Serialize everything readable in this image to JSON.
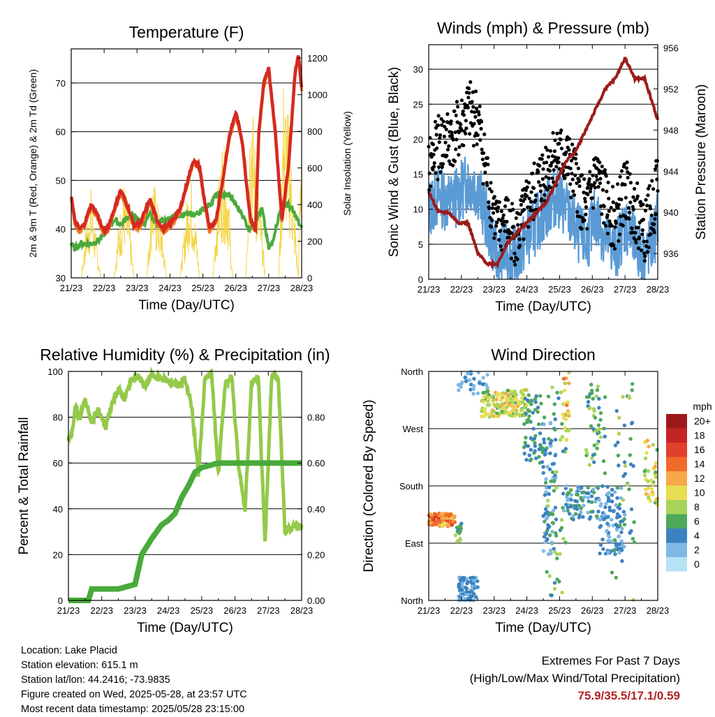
{
  "chart_data": [
    {
      "type": "line",
      "title": "Temperature (F)",
      "xlabel": "Time (Day/UTC)",
      "ylabel": "2m & 9m T (Red, Orange) & 2m Td (Green)",
      "y2label": "Solar Insolation (Yellow)",
      "x_ticks": [
        "21/23",
        "22/23",
        "23/23",
        "24/23",
        "25/23",
        "26/23",
        "27/23",
        "28/23"
      ],
      "ylim": [
        30,
        77
      ],
      "y_ticks": [
        30,
        40,
        50,
        60,
        70
      ],
      "y2lim": [
        0,
        1250
      ],
      "y2_ticks": [
        0,
        200,
        400,
        600,
        800,
        1000,
        1200
      ],
      "grid": "horizontal",
      "colors": {
        "t2m": "#d42a20",
        "t9m": "#f07a24",
        "td": "#4aaa3c",
        "solar": "#f5d445"
      },
      "series": [
        {
          "key": "t2m",
          "x": [
            0,
            0.1,
            0.25,
            0.4,
            0.6,
            0.8,
            0.95,
            1.1,
            1.3,
            1.5,
            1.7,
            1.9,
            2.1,
            2.2,
            2.4,
            2.6,
            2.8,
            3.0,
            3.1,
            3.3,
            3.5,
            3.7,
            3.9,
            4.0,
            4.2,
            4.4,
            4.6,
            4.8,
            5.0,
            5.2,
            5.3,
            5.45,
            5.6,
            5.7,
            5.85,
            6.0,
            6.2,
            6.4,
            6.6,
            6.8,
            6.9,
            7.0
          ],
          "values": [
            47,
            42,
            40,
            41,
            45,
            43,
            40,
            40,
            44,
            48,
            45,
            41,
            41,
            43,
            46,
            42,
            40,
            41,
            42,
            44,
            49,
            54,
            53,
            48,
            40,
            42,
            50,
            59,
            64,
            58,
            51,
            42,
            40,
            60,
            70,
            73,
            60,
            42,
            53,
            72,
            76,
            69
          ]
        },
        {
          "key": "td",
          "x": [
            0,
            0.1,
            0.3,
            0.6,
            0.9,
            1.1,
            1.3,
            1.5,
            1.8,
            2.0,
            2.2,
            2.4,
            2.6,
            2.8,
            3.0,
            3.2,
            3.4,
            3.6,
            3.8,
            4.0,
            4.2,
            4.4,
            4.6,
            4.8,
            5.0,
            5.2,
            5.4,
            5.6,
            5.8,
            6.0,
            6.1,
            6.2,
            6.4,
            6.6,
            6.8,
            7.0
          ],
          "values": [
            37,
            36,
            37,
            37,
            38,
            40,
            42,
            41,
            43,
            42,
            41,
            43,
            41,
            42,
            42,
            43,
            43,
            43,
            43,
            44,
            45,
            47,
            47,
            47,
            45,
            43,
            40,
            42,
            44,
            36,
            37,
            40,
            45,
            45,
            43,
            40
          ]
        },
        {
          "key": "solar",
          "x": [
            0,
            0.3,
            0.45,
            0.6,
            0.75,
            0.9,
            1.3,
            1.45,
            1.6,
            1.75,
            1.9,
            2.3,
            2.45,
            2.6,
            2.75,
            2.9,
            3.3,
            3.45,
            3.6,
            3.75,
            3.9,
            4.3,
            4.45,
            4.6,
            4.75,
            4.9,
            5.3,
            5.45,
            5.6,
            5.75,
            5.9,
            6.3,
            6.45,
            6.6,
            6.75,
            6.9,
            7.0
          ],
          "values": [
            0,
            0,
            300,
            500,
            250,
            0,
            0,
            320,
            550,
            380,
            0,
            0,
            600,
            450,
            300,
            0,
            0,
            300,
            620,
            400,
            0,
            0,
            500,
            780,
            600,
            0,
            0,
            1150,
            700,
            400,
            0,
            0,
            1100,
            900,
            500,
            0,
            1150
          ]
        }
      ]
    },
    {
      "type": "scatter",
      "title": "Winds (mph) & Pressure (mb)",
      "xlabel": "Time (Day/UTC)",
      "ylabel": "Sonic Wind & Gust (Blue, Black)",
      "y2label": "Station Pressure (Maroon)",
      "x_ticks": [
        "21/23",
        "22/23",
        "23/23",
        "24/23",
        "25/23",
        "26/23",
        "27/23",
        "28/23"
      ],
      "ylim": [
        0,
        33.5
      ],
      "y_ticks": [
        0,
        5,
        10,
        15,
        20,
        25,
        30
      ],
      "y2lim": [
        933.5,
        956.3
      ],
      "y2_ticks": [
        936,
        940,
        944,
        948,
        952,
        956
      ],
      "grid": "horizontal",
      "colors": {
        "wind": "#5b9bd5",
        "gust": "#000000",
        "pressure": "#9b1c1c"
      },
      "series": [
        {
          "key": "wind",
          "x": [
            0,
            0.3,
            0.6,
            0.9,
            1.2,
            1.5,
            1.8,
            2.1,
            2.4,
            2.7,
            3.0,
            3.3,
            3.6,
            3.9,
            4.2,
            4.5,
            4.8,
            5.1,
            5.4,
            5.7,
            6.0,
            6.3,
            6.6,
            6.9,
            7.0
          ],
          "values": [
            10,
            12,
            11,
            12,
            14,
            13,
            8,
            3,
            4,
            3,
            6,
            8,
            10,
            12,
            10,
            7,
            5,
            9,
            6,
            4,
            8,
            5,
            3,
            6,
            9
          ]
        },
        {
          "key": "gust",
          "x": [
            0,
            0.3,
            0.6,
            0.9,
            1.2,
            1.5,
            1.8,
            2.1,
            2.4,
            2.7,
            3.0,
            3.3,
            3.6,
            3.9,
            4.2,
            4.5,
            4.8,
            5.1,
            5.4,
            5.7,
            6.0,
            6.3,
            6.6,
            6.9,
            7.0
          ],
          "values": [
            16,
            19,
            20,
            21,
            24,
            23,
            14,
            7,
            8,
            6,
            10,
            13,
            16,
            18,
            17,
            14,
            9,
            15,
            11,
            8,
            13,
            10,
            7,
            11,
            15
          ]
        },
        {
          "key": "pressure",
          "x": [
            0,
            0.3,
            0.6,
            0.9,
            1.2,
            1.5,
            1.8,
            2.1,
            2.4,
            2.7,
            3.0,
            3.3,
            3.6,
            3.9,
            4.2,
            4.5,
            4.8,
            5.1,
            5.4,
            5.7,
            6.0,
            6.3,
            6.6,
            6.9,
            7.0
          ],
          "values": [
            942,
            940,
            940,
            939,
            939,
            936,
            935,
            935,
            937,
            938,
            939,
            940,
            941,
            943,
            945,
            946,
            948,
            950,
            952,
            953,
            955,
            953,
            953,
            950,
            949
          ]
        }
      ]
    },
    {
      "type": "line",
      "title": "Relative Humidity (%) & Precipitation (in)",
      "xlabel": "Time (Day/UTC)",
      "ylabel": "Percent & Total Rainfall",
      "x_ticks": [
        "21/23",
        "22/23",
        "23/23",
        "24/23",
        "25/23",
        "26/23",
        "27/23",
        "28/23"
      ],
      "ylim": [
        0,
        100
      ],
      "y_ticks": [
        0,
        20,
        40,
        60,
        80,
        100
      ],
      "y2lim": [
        0,
        1.0
      ],
      "y2_ticks": [
        "0.00",
        "0.20",
        "0.40",
        "0.60",
        "0.80"
      ],
      "grid": "horizontal",
      "colors": {
        "rh": "#94c94a",
        "precip": "#4aaa3c"
      },
      "series": [
        {
          "key": "rh",
          "x": [
            0,
            0.1,
            0.2,
            0.35,
            0.5,
            0.7,
            0.9,
            1.1,
            1.3,
            1.5,
            1.7,
            1.9,
            2.1,
            2.3,
            2.5,
            2.7,
            2.9,
            3.1,
            3.3,
            3.5,
            3.7,
            3.9,
            4.1,
            4.3,
            4.5,
            4.7,
            4.9,
            5.1,
            5.3,
            5.5,
            5.7,
            5.9,
            6.1,
            6.3,
            6.5,
            6.7,
            6.85,
            7.0
          ],
          "values": [
            70,
            72,
            85,
            80,
            88,
            78,
            84,
            75,
            85,
            92,
            88,
            97,
            98,
            93,
            99,
            97,
            96,
            95,
            94,
            97,
            85,
            55,
            97,
            99,
            55,
            94,
            98,
            60,
            40,
            95,
            97,
            25,
            98,
            97,
            30,
            32,
            32,
            32
          ]
        },
        {
          "key": "precip",
          "x": [
            0,
            0.6,
            0.7,
            1.5,
            2.0,
            2.2,
            2.5,
            2.8,
            3.0,
            3.2,
            3.4,
            3.6,
            3.8,
            4.0,
            4.5,
            5.0,
            6.0,
            7.0
          ],
          "values": [
            0,
            0,
            0.05,
            0.05,
            0.07,
            0.2,
            0.27,
            0.33,
            0.35,
            0.38,
            0.45,
            0.5,
            0.56,
            0.58,
            0.6,
            0.6,
            0.6,
            0.6
          ]
        }
      ]
    },
    {
      "type": "scatter",
      "title": "Wind Direction",
      "xlabel": "Time (Day/UTC)",
      "ylabel": "Direction (Colored By Speed)",
      "x_ticks": [
        "21/23",
        "22/23",
        "23/23",
        "24/23",
        "25/23",
        "26/23",
        "27/23",
        "28/23"
      ],
      "y_ticks": [
        "North",
        "East",
        "South",
        "West",
        "North"
      ],
      "grid": "horizontal",
      "legend": {
        "title": "mph",
        "position": "right",
        "labels": [
          "20+",
          "18",
          "16",
          "14",
          "12",
          "10",
          "8",
          "6",
          "4",
          "2",
          "0"
        ],
        "colors": [
          "#9e1a1a",
          "#c42424",
          "#e0402c",
          "#f06a2c",
          "#f8a848",
          "#e8de52",
          "#a8d45c",
          "#4ea85c",
          "#3d82c0",
          "#7fb8e6",
          "#b8e2f6"
        ]
      }
    }
  ],
  "station": {
    "location": "Location: Lake Placid",
    "elevation": "Station elevation: 615.1 m",
    "latlon": "Station lat/lon: 44.2416; -73.9835",
    "created": "Figure created on Wed, 2025-05-28, at 23:57 UTC",
    "latest": "Most recent data timestamp: 2025/05/28 23:15:00"
  },
  "extremes": {
    "title": "Extremes For Past 7 Days",
    "subtitle": "(High/Low/Max Wind/Total Precipitation)",
    "values": "75.9/35.5/17.1/0.59"
  }
}
